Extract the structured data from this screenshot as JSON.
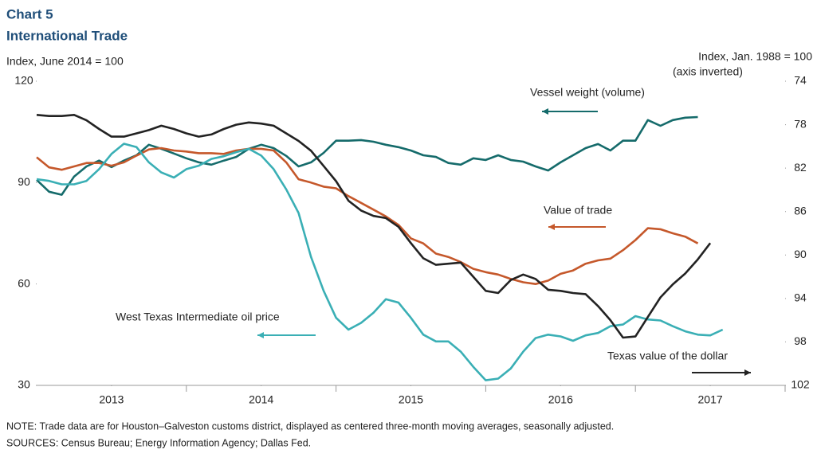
{
  "chart_data": {
    "type": "line",
    "title": "Chart 5",
    "subtitle": "International  Trade",
    "ylabel": "Index,  June 2014  = 100",
    "y2label": [
      "Index,  Jan. 1988  = 100",
      "(axis inverted)"
    ],
    "note": "NOTE: Trade data are for Houston–Galveston customs district, displayed as centered three-month moving averages, seasonally adjusted.",
    "sources": "SOURCES:  Census Bureau; Energy Information Agency; Dallas Fed.",
    "xlim": [
      2013,
      2018
    ],
    "xticks": [
      {
        "value": 2013.5,
        "label": "2013"
      },
      {
        "value": 2014.5,
        "label": "2014"
      },
      {
        "value": 2015.5,
        "label": "2015"
      },
      {
        "value": 2016.5,
        "label": "2016"
      },
      {
        "value": 2017.5,
        "label": "2017"
      }
    ],
    "ylim": [
      30,
      120
    ],
    "yticks": [
      30,
      60,
      90,
      120
    ],
    "y2lim": [
      74,
      102
    ],
    "y2ticks": [
      74,
      78,
      82,
      86,
      90,
      94,
      98,
      102
    ],
    "y2_inverted": true,
    "x": [
      2013.0,
      2013.083,
      2013.167,
      2013.25,
      2013.333,
      2013.417,
      2013.5,
      2013.583,
      2013.667,
      2013.75,
      2013.833,
      2013.917,
      2014.0,
      2014.083,
      2014.167,
      2014.25,
      2014.333,
      2014.417,
      2014.5,
      2014.583,
      2014.667,
      2014.75,
      2014.833,
      2014.917,
      2015.0,
      2015.083,
      2015.167,
      2015.25,
      2015.333,
      2015.417,
      2015.5,
      2015.583,
      2015.667,
      2015.75,
      2015.833,
      2015.917,
      2016.0,
      2016.083,
      2016.167,
      2016.25,
      2016.333,
      2016.417,
      2016.5,
      2016.583,
      2016.667,
      2016.75,
      2016.833,
      2016.917,
      2017.0,
      2017.083,
      2017.167,
      2017.25,
      2017.333,
      2017.417,
      2017.5,
      2017.583
    ],
    "series": [
      {
        "name": "Vessel weight  (volume)",
        "color": "#156b6b",
        "axis": "y",
        "values": [
          90.8,
          87.3,
          86.4,
          91.8,
          94.8,
          96.5,
          94.6,
          96.5,
          98.1,
          101.2,
          100,
          98.6,
          97.2,
          96,
          95.3,
          96.5,
          97.6,
          100,
          101.2,
          100.2,
          97.9,
          94.8,
          96,
          98.8,
          102.4,
          102.4,
          102.6,
          102.1,
          101.2,
          100.5,
          99.5,
          98.1,
          97.6,
          95.8,
          95.3,
          97.2,
          96.7,
          98.1,
          96.7,
          96.2,
          94.8,
          93.6,
          96,
          98.1,
          100.2,
          101.4,
          99.5,
          102.4,
          102.4,
          108.5,
          106.8,
          108.5,
          109.2,
          109.4,
          null,
          null
        ]
      },
      {
        "name": "Value of trade",
        "color": "#c5582b",
        "axis": "y",
        "values": [
          97.5,
          94.5,
          93.8,
          94.8,
          95.8,
          95.8,
          95,
          96,
          98,
          99.8,
          100.2,
          99.5,
          99.2,
          98.7,
          98.7,
          98.5,
          99.5,
          100,
          100,
          99.5,
          96,
          91,
          90,
          88.8,
          88.3,
          86,
          84,
          82,
          80,
          77.5,
          73.5,
          72,
          69,
          68,
          66.5,
          64.5,
          63.5,
          62.8,
          61.5,
          60.5,
          60,
          61,
          63,
          64,
          66,
          67,
          67.5,
          70,
          73,
          76.5,
          76.2,
          75,
          74,
          72,
          null,
          null
        ]
      },
      {
        "name": "West Texas  Intermediate  oil price",
        "color": "#3aafb5",
        "axis": "y",
        "values": [
          91,
          90.5,
          89.5,
          89.5,
          90.5,
          94,
          98.5,
          101.5,
          100.5,
          96,
          93,
          91.5,
          94,
          95,
          97,
          97.8,
          99,
          100,
          98,
          94,
          88,
          81,
          68,
          58,
          50,
          46.5,
          48.5,
          51.5,
          55.5,
          54.5,
          50,
          45,
          43,
          43,
          40,
          35.5,
          31.5,
          32,
          35,
          40,
          44,
          45,
          44.5,
          43.2,
          44.8,
          45.5,
          47.5,
          48,
          50.5,
          49.5,
          49.2,
          47.5,
          46,
          45,
          44.8,
          46.5
        ]
      },
      {
        "name": "Texas  value of the dollar",
        "color": "#222222",
        "axis": "y2",
        "values": [
          77.1,
          77.2,
          77.2,
          77.1,
          77.6,
          78.4,
          79.1,
          79.1,
          78.8,
          78.5,
          78.1,
          78.4,
          78.8,
          79.1,
          78.9,
          78.4,
          78,
          77.8,
          77.9,
          78.1,
          78.8,
          79.5,
          80.4,
          81.8,
          83.2,
          85,
          85.9,
          86.4,
          86.6,
          87.4,
          88.9,
          90.3,
          90.9,
          90.8,
          90.7,
          92,
          93.3,
          93.5,
          92.3,
          91.8,
          92.2,
          93.2,
          93.3,
          93.5,
          93.6,
          94.7,
          96,
          97.6,
          97.5,
          95.7,
          93.9,
          92.7,
          91.7,
          90.4,
          88.9,
          null
        ]
      }
    ]
  }
}
